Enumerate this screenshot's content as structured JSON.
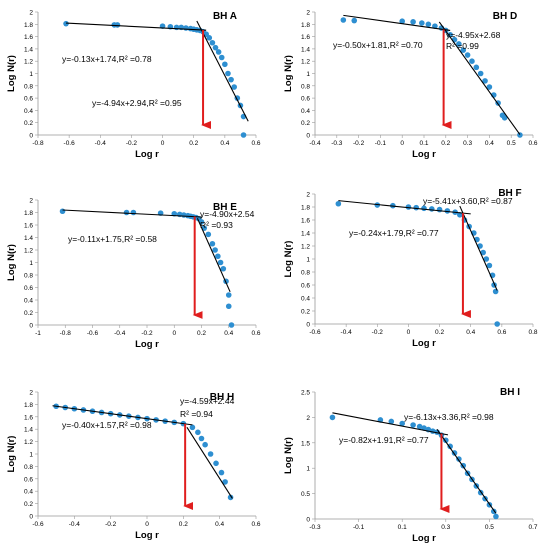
{
  "colors": {
    "point": "#2e8fd1",
    "fit_line": "#000000",
    "arrow": "#e01e1e",
    "axis": "#999999",
    "text": "#000000"
  },
  "chart_data": [
    {
      "type": "scatter",
      "title": "BH A",
      "xlabel": "Log r",
      "ylabel": "Log N(r)",
      "xlim": [
        -0.8,
        0.6
      ],
      "ylim": [
        0,
        2
      ],
      "xticks": [
        "-0.8",
        "-0.6",
        "-0.4",
        "-0.2",
        "0",
        "0.2",
        "0.4",
        "0.6"
      ],
      "yticks": [
        "0",
        "0.2",
        "0.4",
        "0.6",
        "0.8",
        "1",
        "1.2",
        "1.4",
        "1.6",
        "1.8",
        "2"
      ],
      "arrow_x": 0.26,
      "lines": [
        {
          "label": "y=-0.13x+1.74,R² =0.78",
          "slope": -0.13,
          "intercept": 1.74,
          "x_range": [
            -0.62,
            0.28
          ]
        },
        {
          "label": "y=-4.94x+2.94,R² =0.95",
          "slope": -4.94,
          "intercept": 2.94,
          "x_range": [
            0.22,
            0.55
          ]
        }
      ],
      "points": [
        [
          -0.62,
          1.81
        ],
        [
          -0.31,
          1.79
        ],
        [
          -0.29,
          1.79
        ],
        [
          0.0,
          1.77
        ],
        [
          0.05,
          1.76
        ],
        [
          0.09,
          1.75
        ],
        [
          0.12,
          1.75
        ],
        [
          0.15,
          1.74
        ],
        [
          0.18,
          1.73
        ],
        [
          0.2,
          1.72
        ],
        [
          0.22,
          1.71
        ],
        [
          0.24,
          1.7
        ],
        [
          0.26,
          1.68
        ],
        [
          0.28,
          1.64
        ],
        [
          0.3,
          1.58
        ],
        [
          0.32,
          1.5
        ],
        [
          0.34,
          1.42
        ],
        [
          0.36,
          1.35
        ],
        [
          0.38,
          1.26
        ],
        [
          0.4,
          1.15
        ],
        [
          0.42,
          1.0
        ],
        [
          0.44,
          0.9
        ],
        [
          0.46,
          0.78
        ],
        [
          0.48,
          0.6
        ],
        [
          0.5,
          0.48
        ],
        [
          0.52,
          0.3
        ],
        [
          0.52,
          0.0
        ]
      ]
    },
    {
      "type": "scatter",
      "title": "BH D",
      "xlabel": "Log r",
      "ylabel": "Log N(r)",
      "xlim": [
        -0.4,
        0.6
      ],
      "ylim": [
        0,
        2
      ],
      "xticks": [
        "-0.4",
        "-0.3",
        "-0.2",
        "-0.1",
        "0",
        "0.1",
        "0.2",
        "0.3",
        "0.4",
        "0.5",
        "0.6"
      ],
      "yticks": [
        "0",
        "0.2",
        "0.4",
        "0.6",
        "0.8",
        "1",
        "1.2",
        "1.4",
        "1.6",
        "1.8",
        "2"
      ],
      "arrow_x": 0.19,
      "lines": [
        {
          "label": "y=-0.50x+1.81,R² =0.70",
          "slope": -0.5,
          "intercept": 1.81,
          "x_range": [
            -0.27,
            0.22
          ]
        },
        {
          "label": "y=-4.95x+2.68",
          "slope": -4.95,
          "intercept": 2.68,
          "x_range": [
            0.17,
            0.54
          ]
        }
      ],
      "r2_note": "R² =0.99",
      "points": [
        [
          -0.27,
          1.87
        ],
        [
          -0.22,
          1.86
        ],
        [
          0.0,
          1.85
        ],
        [
          0.05,
          1.84
        ],
        [
          0.09,
          1.82
        ],
        [
          0.12,
          1.8
        ],
        [
          0.15,
          1.77
        ],
        [
          0.18,
          1.74
        ],
        [
          0.2,
          1.7
        ],
        [
          0.22,
          1.63
        ],
        [
          0.24,
          1.55
        ],
        [
          0.26,
          1.48
        ],
        [
          0.28,
          1.38
        ],
        [
          0.3,
          1.3
        ],
        [
          0.32,
          1.2
        ],
        [
          0.34,
          1.1
        ],
        [
          0.36,
          1.0
        ],
        [
          0.38,
          0.88
        ],
        [
          0.4,
          0.78
        ],
        [
          0.42,
          0.65
        ],
        [
          0.44,
          0.52
        ],
        [
          0.46,
          0.32
        ],
        [
          0.47,
          0.28
        ],
        [
          0.54,
          0.0
        ]
      ]
    },
    {
      "type": "scatter",
      "title": "BH E",
      "xlabel": "Log r",
      "ylabel": "Log N(r)",
      "xlim": [
        -1,
        0.6
      ],
      "ylim": [
        0,
        2
      ],
      "xticks": [
        "-1",
        "-0.8",
        "-0.6",
        "-0.4",
        "-0.2",
        "0",
        "0.2",
        "0.4",
        "0.6"
      ],
      "yticks": [
        "0",
        "0.2",
        "0.4",
        "0.6",
        "0.8",
        "1",
        "1.2",
        "1.4",
        "1.6",
        "1.8",
        "2"
      ],
      "arrow_x": 0.15,
      "lines": [
        {
          "label": "y=-0.11x+1.75,R² =0.58",
          "slope": -0.11,
          "intercept": 1.75,
          "x_range": [
            -0.82,
            0.2
          ]
        },
        {
          "label": "y=-4.90x+2.54",
          "slope": -4.9,
          "intercept": 2.54,
          "x_range": [
            0.17,
            0.41
          ]
        }
      ],
      "r2_note": "R² =0.93",
      "points": [
        [
          -0.82,
          1.82
        ],
        [
          -0.35,
          1.8
        ],
        [
          -0.3,
          1.8
        ],
        [
          -0.1,
          1.79
        ],
        [
          0.0,
          1.78
        ],
        [
          0.04,
          1.77
        ],
        [
          0.07,
          1.76
        ],
        [
          0.1,
          1.75
        ],
        [
          0.12,
          1.74
        ],
        [
          0.14,
          1.73
        ],
        [
          0.16,
          1.72
        ],
        [
          0.18,
          1.7
        ],
        [
          0.2,
          1.65
        ],
        [
          0.22,
          1.55
        ],
        [
          0.25,
          1.45
        ],
        [
          0.28,
          1.3
        ],
        [
          0.3,
          1.2
        ],
        [
          0.32,
          1.1
        ],
        [
          0.34,
          1.0
        ],
        [
          0.36,
          0.9
        ],
        [
          0.38,
          0.7
        ],
        [
          0.4,
          0.48
        ],
        [
          0.4,
          0.3
        ],
        [
          0.42,
          0.0
        ]
      ]
    },
    {
      "type": "scatter",
      "title": "BH F",
      "xlabel": "Log r",
      "ylabel": "Log N(r)",
      "xlim": [
        -0.6,
        0.8
      ],
      "ylim": [
        0,
        2
      ],
      "xticks": [
        "-0.6",
        "-0.4",
        "-0.2",
        "0",
        "0.2",
        "0.4",
        "0.6",
        "0.8"
      ],
      "yticks": [
        "0",
        "0.2",
        "0.4",
        "0.6",
        "0.8",
        "1",
        "1.2",
        "1.4",
        "1.6",
        "1.8",
        "2"
      ],
      "arrow_x": 0.35,
      "lines": [
        {
          "label": "y=-0.24x+1.79,R² =0.77",
          "slope": -0.24,
          "intercept": 1.79,
          "x_range": [
            -0.45,
            0.4
          ]
        },
        {
          "label": "y=-5.41x+3.60,R² =0.87",
          "slope": -5.41,
          "intercept": 3.6,
          "x_range": [
            0.33,
            0.57
          ]
        }
      ],
      "points": [
        [
          -0.45,
          1.85
        ],
        [
          -0.2,
          1.83
        ],
        [
          -0.1,
          1.82
        ],
        [
          0.0,
          1.8
        ],
        [
          0.05,
          1.79
        ],
        [
          0.1,
          1.78
        ],
        [
          0.15,
          1.77
        ],
        [
          0.2,
          1.76
        ],
        [
          0.25,
          1.74
        ],
        [
          0.3,
          1.72
        ],
        [
          0.33,
          1.68
        ],
        [
          0.36,
          1.6
        ],
        [
          0.39,
          1.5
        ],
        [
          0.42,
          1.4
        ],
        [
          0.44,
          1.3
        ],
        [
          0.46,
          1.2
        ],
        [
          0.48,
          1.1
        ],
        [
          0.5,
          1.0
        ],
        [
          0.52,
          0.9
        ],
        [
          0.54,
          0.75
        ],
        [
          0.55,
          0.6
        ],
        [
          0.56,
          0.5
        ],
        [
          0.57,
          0.0
        ]
      ]
    },
    {
      "type": "scatter",
      "title": "BH H",
      "xlabel": "Log r",
      "ylabel": "Log N(r)",
      "xlim": [
        -0.6,
        0.6
      ],
      "ylim": [
        0,
        2
      ],
      "xticks": [
        "-0.6",
        "-0.4",
        "-0.2",
        "0",
        "0.2",
        "0.4",
        "0.6"
      ],
      "yticks": [
        "0",
        "0.2",
        "0.4",
        "0.6",
        "0.8",
        "1",
        "1.2",
        "1.4",
        "1.6",
        "1.8",
        "2"
      ],
      "arrow_x": 0.21,
      "lines": [
        {
          "label": "y=-0.40x+1.57,R² =0.98",
          "slope": -0.4,
          "intercept": 1.57,
          "x_range": [
            -0.52,
            0.25
          ]
        },
        {
          "label": "y=-4.59x+2.44",
          "slope": -4.59,
          "intercept": 2.44,
          "x_range": [
            0.22,
            0.47
          ]
        }
      ],
      "r2_note": "R² =0.94",
      "points": [
        [
          -0.5,
          1.77
        ],
        [
          -0.45,
          1.75
        ],
        [
          -0.4,
          1.73
        ],
        [
          -0.35,
          1.71
        ],
        [
          -0.3,
          1.69
        ],
        [
          -0.25,
          1.67
        ],
        [
          -0.2,
          1.65
        ],
        [
          -0.15,
          1.63
        ],
        [
          -0.1,
          1.61
        ],
        [
          -0.05,
          1.59
        ],
        [
          0.0,
          1.57
        ],
        [
          0.05,
          1.55
        ],
        [
          0.1,
          1.53
        ],
        [
          0.15,
          1.51
        ],
        [
          0.2,
          1.49
        ],
        [
          0.25,
          1.43
        ],
        [
          0.28,
          1.35
        ],
        [
          0.3,
          1.25
        ],
        [
          0.32,
          1.15
        ],
        [
          0.35,
          1.0
        ],
        [
          0.38,
          0.85
        ],
        [
          0.41,
          0.7
        ],
        [
          0.43,
          0.55
        ],
        [
          0.46,
          0.3
        ]
      ]
    },
    {
      "type": "scatter",
      "title": "BH I",
      "xlabel": "Log r",
      "ylabel": "Log N(r)",
      "xlim": [
        -0.3,
        0.7
      ],
      "ylim": [
        0,
        2.5
      ],
      "xticks": [
        "-0.3",
        "-0.1",
        "0.1",
        "0.3",
        "0.5",
        "0.7"
      ],
      "yticks": [
        "0",
        "0.5",
        "1",
        "1.5",
        "2",
        "2.5"
      ],
      "arrow_x": 0.28,
      "lines": [
        {
          "label": "y=-0.82x+1.91,R² =0.77",
          "slope": -0.82,
          "intercept": 1.91,
          "x_range": [
            -0.22,
            0.31
          ]
        },
        {
          "label": "y=-6.13x+3.36,R² =0.98",
          "slope": -6.13,
          "intercept": 3.36,
          "x_range": [
            0.26,
            0.53
          ]
        }
      ],
      "points": [
        [
          -0.22,
          2.0
        ],
        [
          0.0,
          1.95
        ],
        [
          0.05,
          1.92
        ],
        [
          0.1,
          1.88
        ],
        [
          0.15,
          1.85
        ],
        [
          0.18,
          1.82
        ],
        [
          0.2,
          1.79
        ],
        [
          0.22,
          1.76
        ],
        [
          0.24,
          1.73
        ],
        [
          0.26,
          1.71
        ],
        [
          0.28,
          1.65
        ],
        [
          0.3,
          1.55
        ],
        [
          0.32,
          1.43
        ],
        [
          0.34,
          1.3
        ],
        [
          0.36,
          1.18
        ],
        [
          0.38,
          1.05
        ],
        [
          0.4,
          0.9
        ],
        [
          0.42,
          0.78
        ],
        [
          0.44,
          0.65
        ],
        [
          0.46,
          0.52
        ],
        [
          0.48,
          0.4
        ],
        [
          0.5,
          0.28
        ],
        [
          0.52,
          0.15
        ],
        [
          0.53,
          0.05
        ]
      ]
    }
  ]
}
